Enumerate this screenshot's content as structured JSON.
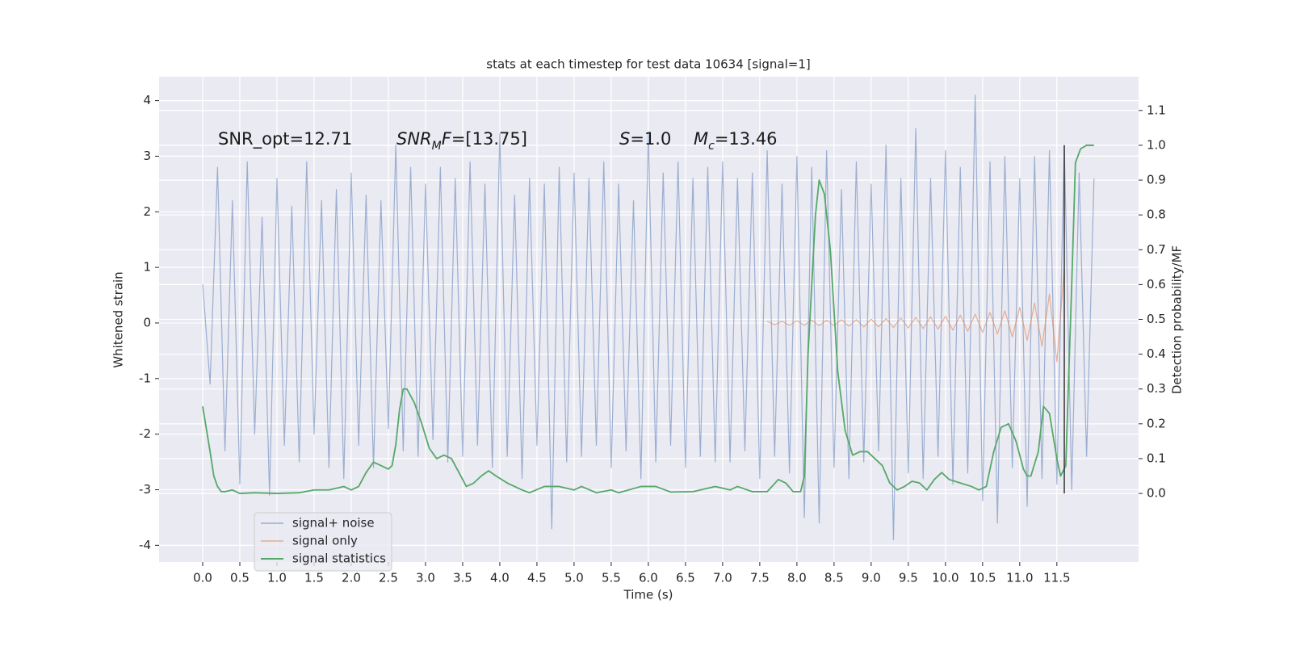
{
  "chart_data": {
    "type": "line",
    "title": "stats at each timestep for test data 10634 [signal=1]",
    "xlabel": "Time (s)",
    "ylabel": "Whitened strain",
    "y2label": "Detection probability/MF",
    "xlim": [
      -0.587,
      12.6
    ],
    "ylim": [
      -4.3,
      4.43
    ],
    "y2lim": [
      -0.197,
      1.197
    ],
    "xticks": [
      {
        "value": 0,
        "label": "0.0"
      },
      0.5,
      {
        "value": 1,
        "label": "1.0"
      },
      1.5,
      {
        "value": 2,
        "label": "2.0"
      },
      2.5,
      {
        "value": 3,
        "label": "3.0"
      },
      3.5,
      {
        "value": 4,
        "label": "4.0"
      },
      4.5,
      {
        "value": 5,
        "label": "5.0"
      },
      5.5,
      {
        "value": 6,
        "label": "6.0"
      },
      6.5,
      {
        "value": 7,
        "label": "7.0"
      },
      7.5,
      {
        "value": 8,
        "label": "8.0"
      },
      8.5,
      {
        "value": 9,
        "label": "9.0"
      },
      9.5,
      {
        "value": 10,
        "label": "10.0"
      },
      10.5,
      {
        "value": 11,
        "label": "11.0"
      },
      11.5
    ],
    "yticks": [
      -4,
      -3,
      -2,
      -1,
      0,
      1,
      2,
      3,
      4
    ],
    "y2ticks": [
      {
        "value": 0,
        "label": "0.0"
      },
      0.1,
      0.2,
      0.3,
      0.4,
      0.5,
      0.6,
      0.7,
      0.8,
      0.9,
      {
        "value": 1,
        "label": "1.0"
      },
      1.1
    ],
    "grid": true,
    "legend": "lower left",
    "annotations": [
      [
        {
          "text": "SNR_opt=12.71"
        }
      ],
      [
        {
          "text": "SNR",
          "italic": true
        },
        {
          "text": "M",
          "italic": true,
          "subscript": true
        },
        {
          "text": "F",
          "italic": true
        },
        {
          "text": "=[13.75]"
        }
      ],
      [
        {
          "text": "S",
          "italic": true
        },
        {
          "text": "=1.0"
        }
      ],
      [
        {
          "text": "M",
          "italic": true
        },
        {
          "text": "c",
          "italic": true,
          "subscript": true
        },
        {
          "text": "=13.46"
        }
      ]
    ],
    "vline": 11.6,
    "series": [
      {
        "name": "signal+ noise",
        "color": "#4c72b0",
        "x": [
          0.0,
          0.1,
          0.2,
          0.3,
          0.4,
          0.5,
          0.6,
          0.7,
          0.8,
          0.9,
          1.0,
          1.1,
          1.2,
          1.3,
          1.4,
          1.5,
          1.6,
          1.7,
          1.8,
          1.9,
          2.0,
          2.1,
          2.2,
          2.3,
          2.4,
          2.5,
          2.6,
          2.7,
          2.8,
          2.9,
          3.0,
          3.1,
          3.2,
          3.3,
          3.4,
          3.5,
          3.6,
          3.7,
          3.8,
          3.9,
          4.0,
          4.1,
          4.2,
          4.3,
          4.4,
          4.5,
          4.6,
          4.7,
          4.8,
          4.9,
          5.0,
          5.1,
          5.2,
          5.3,
          5.4,
          5.5,
          5.6,
          5.7,
          5.8,
          5.9,
          6.0,
          6.1,
          6.2,
          6.3,
          6.4,
          6.5,
          6.6,
          6.7,
          6.8,
          6.9,
          7.0,
          7.1,
          7.2,
          7.3,
          7.4,
          7.5,
          7.6,
          7.7,
          7.8,
          7.9,
          8.0,
          8.1,
          8.2,
          8.3,
          8.4,
          8.5,
          8.6,
          8.7,
          8.8,
          8.9,
          9.0,
          9.1,
          9.2,
          9.3,
          9.4,
          9.5,
          9.6,
          9.7,
          9.8,
          9.9,
          10.0,
          10.1,
          10.2,
          10.3,
          10.4,
          10.5,
          10.6,
          10.7,
          10.8,
          10.9,
          11.0,
          11.1,
          11.2,
          11.3,
          11.4,
          11.5,
          11.6,
          11.7,
          11.8,
          11.9,
          12.0
        ],
        "values": [
          0.7,
          -1.1,
          2.8,
          -2.3,
          2.2,
          -2.9,
          2.9,
          -2.0,
          1.9,
          -3.1,
          2.6,
          -2.2,
          2.1,
          -2.5,
          2.9,
          -2.0,
          2.2,
          -2.6,
          2.4,
          -2.8,
          2.7,
          -2.2,
          2.3,
          -2.6,
          2.2,
          -1.9,
          3.2,
          -2.3,
          2.8,
          -2.4,
          2.5,
          -2.1,
          2.8,
          -2.5,
          2.6,
          -2.4,
          2.9,
          -2.2,
          2.5,
          -2.6,
          3.4,
          -2.4,
          2.3,
          -2.8,
          2.6,
          -2.2,
          2.5,
          -3.7,
          2.8,
          -2.5,
          2.7,
          -2.4,
          2.6,
          -2.2,
          2.9,
          -2.6,
          2.5,
          -2.3,
          2.2,
          -2.8,
          3.4,
          -2.5,
          2.7,
          -2.2,
          2.9,
          -2.6,
          2.6,
          -2.4,
          2.8,
          -2.5,
          2.9,
          -2.5,
          2.6,
          -2.3,
          2.7,
          -2.8,
          3.1,
          -2.4,
          2.5,
          -2.7,
          3.0,
          -3.5,
          2.8,
          -3.6,
          3.1,
          -2.6,
          2.4,
          -2.8,
          2.9,
          -2.5,
          2.5,
          -2.3,
          3.2,
          -3.9,
          2.6,
          -2.7,
          3.5,
          -2.8,
          2.6,
          -2.4,
          3.1,
          -2.9,
          2.8,
          -2.7,
          4.1,
          -3.2,
          2.9,
          -3.6,
          3.0,
          -2.6,
          2.6,
          -3.3,
          3.0,
          -2.8,
          3.1,
          -2.9,
          3.2,
          -3.0,
          2.7,
          -2.4,
          2.6
        ]
      },
      {
        "name": "signal only",
        "color": "#dd8452",
        "x": [
          7.6,
          7.7,
          7.8,
          7.9,
          8.0,
          8.1,
          8.2,
          8.3,
          8.4,
          8.5,
          8.6,
          8.7,
          8.8,
          8.9,
          9.0,
          9.1,
          9.2,
          9.3,
          9.4,
          9.5,
          9.6,
          9.7,
          9.8,
          9.9,
          10.0,
          10.1,
          10.2,
          10.3,
          10.4,
          10.5,
          10.6,
          10.7,
          10.8,
          10.9,
          11.0,
          11.1,
          11.2,
          11.3,
          11.4,
          11.5,
          11.6
        ],
        "values": [
          0.03,
          -0.03,
          0.03,
          -0.04,
          0.04,
          -0.04,
          0.05,
          -0.05,
          0.05,
          -0.05,
          0.06,
          -0.06,
          0.06,
          -0.07,
          0.07,
          -0.07,
          0.08,
          -0.08,
          0.09,
          -0.09,
          0.1,
          -0.1,
          0.11,
          -0.11,
          0.12,
          -0.13,
          0.14,
          -0.15,
          0.16,
          -0.17,
          0.19,
          -0.2,
          0.22,
          -0.25,
          0.28,
          -0.31,
          0.36,
          -0.42,
          0.52,
          -0.7,
          1.0
        ]
      },
      {
        "name": "signal statistics",
        "color": "#55a868",
        "axis": "y2",
        "x": [
          0.0,
          0.1,
          0.15,
          0.2,
          0.25,
          0.3,
          0.4,
          0.5,
          0.7,
          1.0,
          1.3,
          1.5,
          1.7,
          1.9,
          2.0,
          2.1,
          2.2,
          2.3,
          2.4,
          2.5,
          2.55,
          2.6,
          2.65,
          2.7,
          2.75,
          2.85,
          2.95,
          3.05,
          3.15,
          3.25,
          3.35,
          3.45,
          3.55,
          3.65,
          3.75,
          3.85,
          3.95,
          4.1,
          4.3,
          4.4,
          4.6,
          4.8,
          5.0,
          5.1,
          5.3,
          5.5,
          5.6,
          5.9,
          6.1,
          6.3,
          6.6,
          6.9,
          7.1,
          7.2,
          7.4,
          7.6,
          7.75,
          7.85,
          7.95,
          8.05,
          8.1,
          8.15,
          8.25,
          8.3,
          8.37,
          8.45,
          8.55,
          8.65,
          8.75,
          8.85,
          8.95,
          9.05,
          9.15,
          9.25,
          9.35,
          9.45,
          9.55,
          9.65,
          9.75,
          9.85,
          9.95,
          10.05,
          10.2,
          10.35,
          10.45,
          10.55,
          10.65,
          10.75,
          10.85,
          10.95,
          11.05,
          11.1,
          11.15,
          11.25,
          11.32,
          11.4,
          11.5,
          11.55,
          11.62,
          11.7,
          11.75,
          11.82,
          11.9,
          12.0
        ],
        "values": [
          0.25,
          0.12,
          0.05,
          0.02,
          0.005,
          0.005,
          0.01,
          0.0,
          0.002,
          0.0,
          0.002,
          0.01,
          0.01,
          0.02,
          0.01,
          0.02,
          0.06,
          0.09,
          0.08,
          0.07,
          0.08,
          0.14,
          0.24,
          0.3,
          0.3,
          0.26,
          0.2,
          0.13,
          0.1,
          0.11,
          0.1,
          0.06,
          0.02,
          0.03,
          0.05,
          0.065,
          0.05,
          0.03,
          0.01,
          0.002,
          0.02,
          0.02,
          0.01,
          0.02,
          0.002,
          0.01,
          0.002,
          0.02,
          0.02,
          0.004,
          0.005,
          0.02,
          0.01,
          0.02,
          0.005,
          0.005,
          0.04,
          0.03,
          0.005,
          0.005,
          0.05,
          0.4,
          0.8,
          0.9,
          0.86,
          0.7,
          0.35,
          0.18,
          0.11,
          0.12,
          0.12,
          0.1,
          0.08,
          0.03,
          0.01,
          0.02,
          0.035,
          0.03,
          0.01,
          0.04,
          0.06,
          0.04,
          0.03,
          0.02,
          0.01,
          0.02,
          0.12,
          0.19,
          0.2,
          0.15,
          0.07,
          0.05,
          0.05,
          0.12,
          0.25,
          0.23,
          0.1,
          0.05,
          0.08,
          0.6,
          0.95,
          0.99,
          1.0,
          1.0
        ]
      }
    ]
  }
}
